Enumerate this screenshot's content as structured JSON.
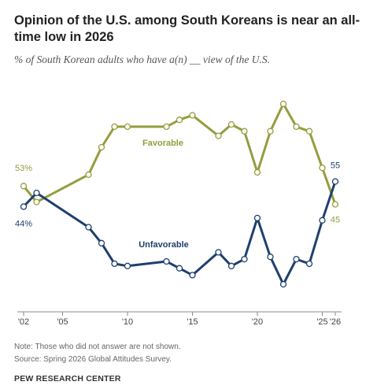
{
  "chart_data": {
    "type": "line",
    "title": "Opinion of the U.S. among South Koreans is near an all-time low in 2026",
    "subtitle": "% of South Korean adults who have a(n) __ view of the U.S.",
    "x": [
      2002,
      2003,
      2007,
      2008,
      2009,
      2010,
      2013,
      2014,
      2015,
      2017,
      2018,
      2019,
      2020,
      2021,
      2022,
      2023,
      2024,
      2025,
      2026
    ],
    "series": [
      {
        "name": "Favorable",
        "color": "#959d3d",
        "values": [
          53,
          46,
          58,
          70,
          79,
          79,
          79,
          82,
          84,
          75,
          80,
          77,
          59,
          77,
          89,
          79,
          77,
          61,
          45
        ],
        "value_labels": [
          "53%",
          null,
          null,
          null,
          null,
          null,
          null,
          null,
          null,
          null,
          null,
          null,
          null,
          null,
          null,
          null,
          null,
          null,
          "45"
        ]
      },
      {
        "name": "Unfavorable",
        "color": "#1f3f6e",
        "values": [
          44,
          50,
          35,
          28,
          19,
          18,
          20,
          17,
          14,
          24,
          18,
          21,
          39,
          22,
          10,
          21,
          19,
          38,
          55
        ],
        "value_labels": [
          "44%",
          null,
          null,
          null,
          null,
          null,
          null,
          null,
          null,
          null,
          null,
          null,
          null,
          null,
          null,
          null,
          null,
          null,
          "55"
        ]
      }
    ],
    "xlim": [
      2002,
      2026
    ],
    "xticks": [
      {
        "value": 2002,
        "label": "'02"
      },
      {
        "value": 2005,
        "label": "'05"
      },
      {
        "value": 2010,
        "label": "'10"
      },
      {
        "value": 2015,
        "label": "'15"
      },
      {
        "value": 2020,
        "label": "'20"
      },
      {
        "value": 2025,
        "label": "'25"
      },
      {
        "value": 2026,
        "label": "'26"
      }
    ],
    "ylim": [
      0,
      100
    ],
    "note": "Note: Those who did not answer are not shown.",
    "source": "Source: Spring 2026 Global Attitudes Survey.",
    "credit": "PEW RESEARCH CENTER"
  }
}
